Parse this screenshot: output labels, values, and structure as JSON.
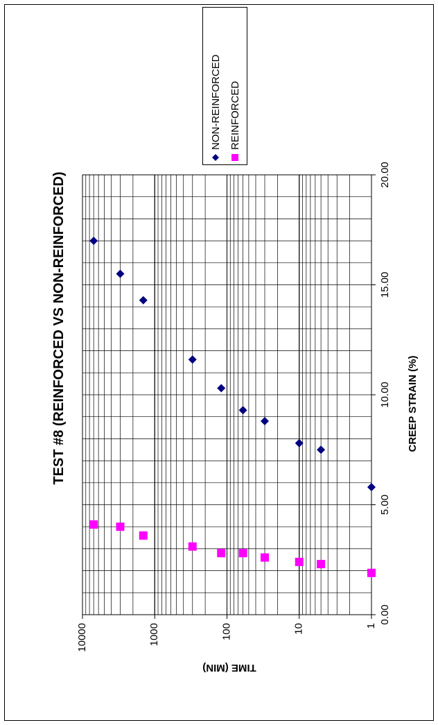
{
  "chart_data": {
    "type": "scatter",
    "title": "TEST #8 (REINFORCED VS NON-REINFORCED)",
    "xlabel": "CREEP STRAIN (%)",
    "ylabel": "TIME (MIN)",
    "xlim": [
      0,
      20
    ],
    "ylim": [
      1,
      10000
    ],
    "y_scale": "log",
    "x_ticks": [
      "0.00",
      "5.00",
      "10.00",
      "15.00",
      "20.00"
    ],
    "y_ticks": [
      "1",
      "10",
      "100",
      "1000",
      "10000"
    ],
    "grid": true,
    "legend_position": "top-right",
    "orientation": "rotated 90° clockwise on the page",
    "series": [
      {
        "name": "NON-REINFORCED",
        "color": "#000080",
        "marker": "diamond",
        "points": [
          {
            "x": 5.8,
            "y": 1
          },
          {
            "x": 7.5,
            "y": 5
          },
          {
            "x": 7.8,
            "y": 10
          },
          {
            "x": 8.8,
            "y": 30
          },
          {
            "x": 9.3,
            "y": 60
          },
          {
            "x": 10.3,
            "y": 120
          },
          {
            "x": 11.6,
            "y": 300
          },
          {
            "x": 14.3,
            "y": 1440
          },
          {
            "x": 15.5,
            "y": 3000
          },
          {
            "x": 17.0,
            "y": 7000
          }
        ]
      },
      {
        "name": "REINFORCED",
        "color": "#FF00FF",
        "marker": "square",
        "points": [
          {
            "x": 1.9,
            "y": 1
          },
          {
            "x": 2.3,
            "y": 5
          },
          {
            "x": 2.4,
            "y": 10
          },
          {
            "x": 2.6,
            "y": 30
          },
          {
            "x": 2.8,
            "y": 60
          },
          {
            "x": 2.8,
            "y": 120
          },
          {
            "x": 3.1,
            "y": 300
          },
          {
            "x": 3.6,
            "y": 1440
          },
          {
            "x": 4.0,
            "y": 3000
          },
          {
            "x": 4.1,
            "y": 7000
          }
        ]
      }
    ]
  }
}
